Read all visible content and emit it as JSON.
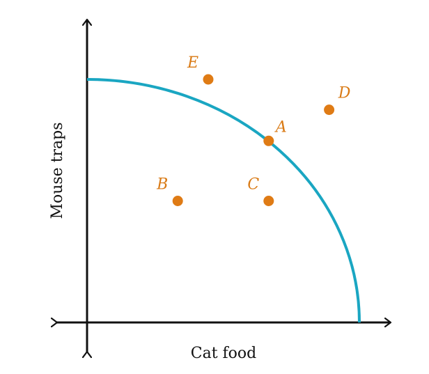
{
  "axes": {
    "x_label": "Cat food",
    "y_label": "Mouse traps"
  },
  "curve": {
    "color": "#1aa6c2",
    "type": "quarter-circle"
  },
  "points": [
    {
      "id": "E",
      "label": "E",
      "x": 0.445,
      "y": 1.0
    },
    {
      "id": "D",
      "label": "D",
      "x": 0.889,
      "y": 0.875
    },
    {
      "id": "A",
      "label": "A",
      "x": 0.667,
      "y": 0.747
    },
    {
      "id": "B",
      "label": "B",
      "x": 0.333,
      "y": 0.5
    },
    {
      "id": "C",
      "label": "C",
      "x": 0.667,
      "y": 0.5
    }
  ],
  "colors": {
    "axis": "#111111",
    "point": "#df7b15"
  }
}
